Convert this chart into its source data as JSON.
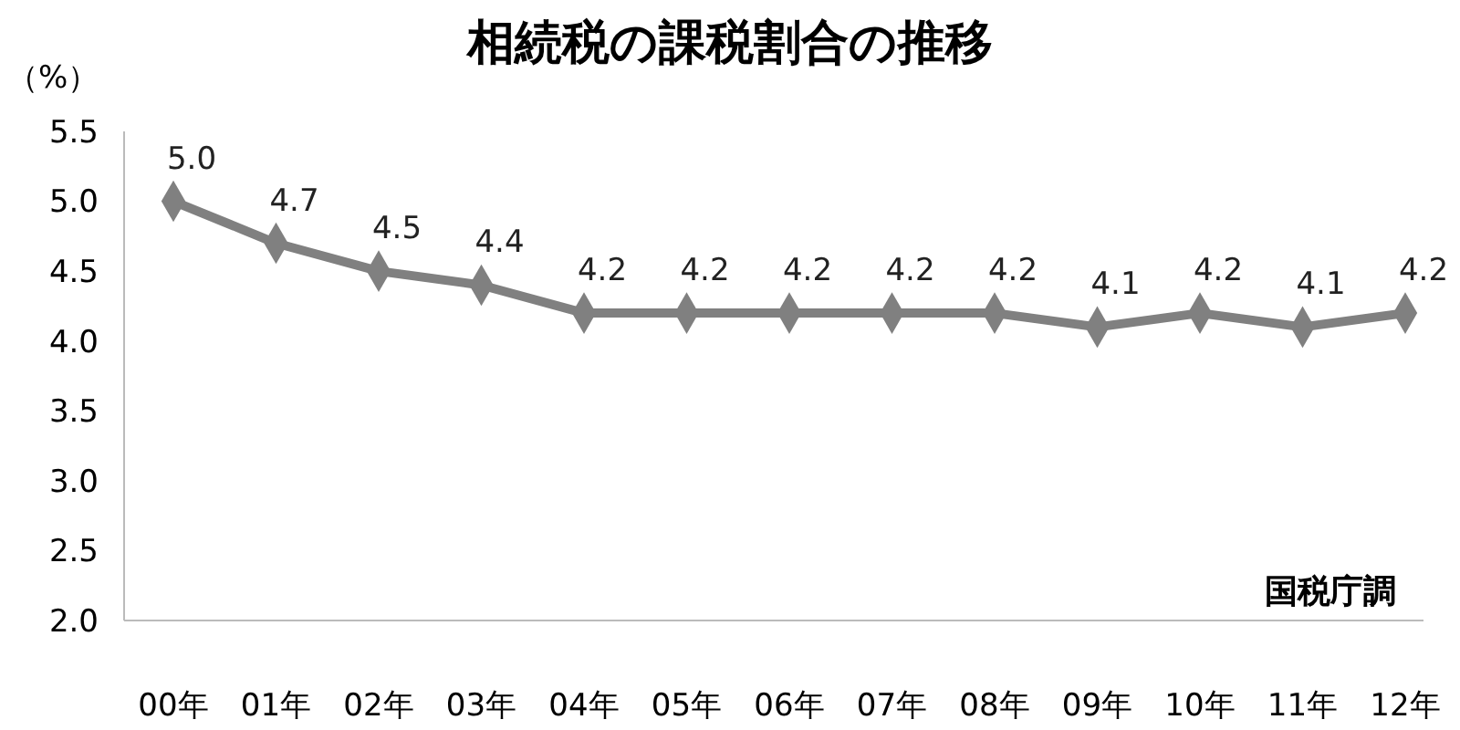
{
  "chart_data": {
    "type": "line",
    "title": "相続税の課税割合の推移",
    "ylabel": "（%）",
    "annotations": [
      "国税庁調"
    ],
    "categories": [
      "00年",
      "01年",
      "02年",
      "03年",
      "04年",
      "05年",
      "06年",
      "07年",
      "08年",
      "09年",
      "10年",
      "11年",
      "12年"
    ],
    "series": [
      {
        "color": "#808080",
        "values": [
          5.0,
          4.7,
          4.5,
          4.4,
          4.2,
          4.2,
          4.2,
          4.2,
          4.2,
          4.1,
          4.2,
          4.1,
          4.2
        ],
        "value_labels": [
          "5.0",
          "4.7",
          "4.5",
          "4.4",
          "4.2",
          "4.2",
          "4.2",
          "4.2",
          "4.2",
          "4.1",
          "4.2",
          "4.1",
          "4.2"
        ]
      }
    ],
    "ylim": [
      2,
      5.5
    ],
    "yticks": [
      {
        "value": 2,
        "label": "2.0"
      },
      {
        "value": 2.5,
        "label": "2.5"
      },
      {
        "value": 3,
        "label": "3.0"
      },
      {
        "value": 3.5,
        "label": "3.5"
      },
      {
        "value": 4,
        "label": "4.0"
      },
      {
        "value": 4.5,
        "label": "4.5"
      },
      {
        "value": 5,
        "label": "5.0"
      },
      {
        "value": 5.5,
        "label": "5.5"
      }
    ],
    "marker": "diamond",
    "line_style": "solid",
    "grid": false
  }
}
